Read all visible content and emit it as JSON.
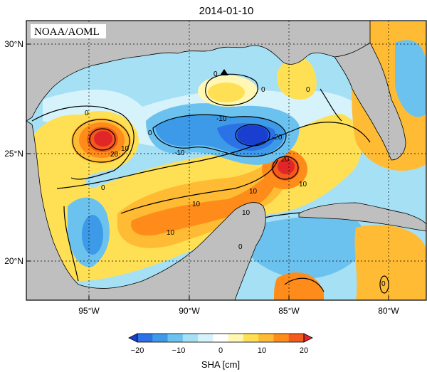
{
  "title": "2014-01-10",
  "credit": "NOAA/AOML",
  "map": {
    "lat_ticks": [
      "30°N",
      "25°N",
      "20°N"
    ],
    "lon_ticks": [
      "95°W",
      "90°W",
      "85°W",
      "80°W"
    ],
    "lat_range": [
      18.2,
      31.0
    ],
    "lon_range": [
      -98.0,
      -78.2
    ],
    "land_color": "#bfbfbf",
    "contour_labels": [
      "0",
      "0",
      "0",
      "0",
      "20",
      "10",
      "0",
      "0",
      "-10",
      "-10",
      "-20",
      "10",
      "10",
      "10",
      "20",
      "0",
      "10",
      "10",
      "0"
    ]
  },
  "colorbar": {
    "label": "SHA [cm]",
    "ticks": [
      "−20",
      "−10",
      "0",
      "10",
      "20"
    ],
    "range": [
      -20,
      20
    ],
    "colors": [
      "#1a3fd0",
      "#2a72e6",
      "#3c9ae8",
      "#6cc2ee",
      "#a6e0f5",
      "#d6f3fb",
      "#ffffff",
      "#fff7b3",
      "#ffe055",
      "#ffbb33",
      "#ff8c1a",
      "#f25a1e",
      "#e02626"
    ]
  },
  "marker": "triangle"
}
